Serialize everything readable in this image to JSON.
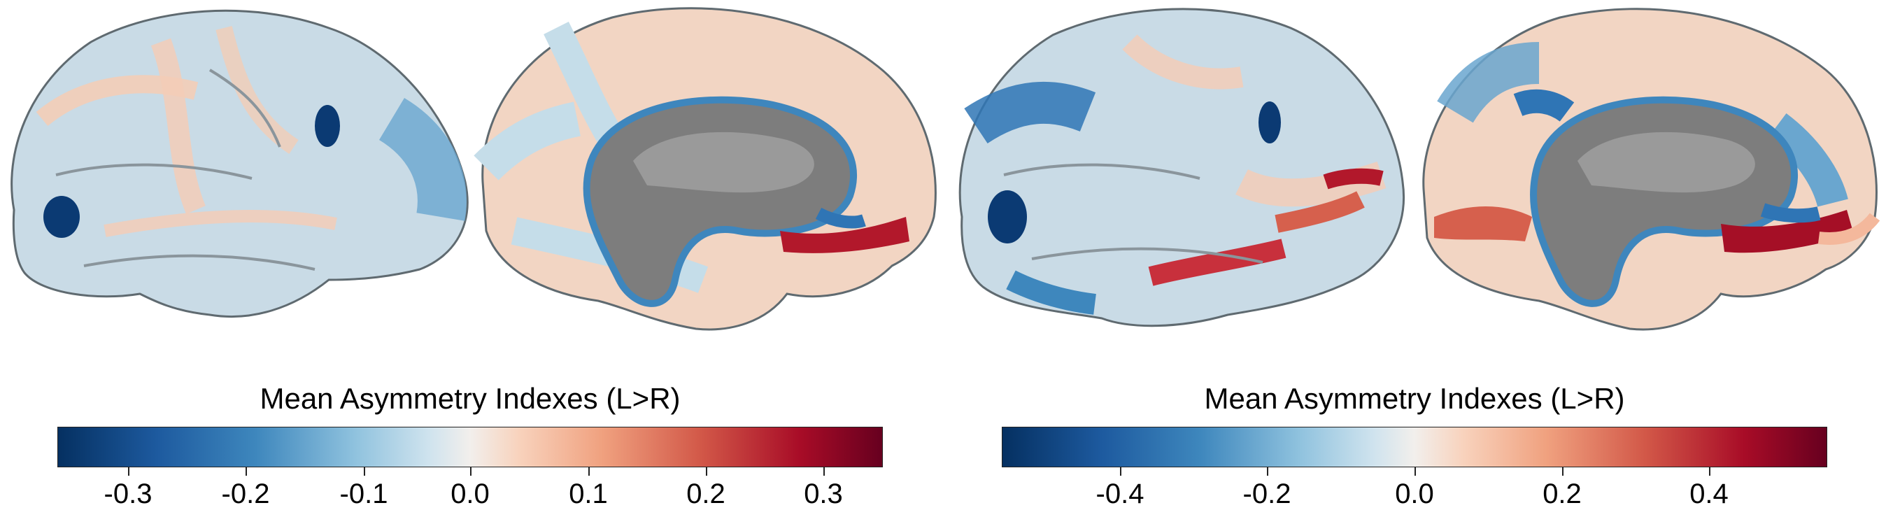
{
  "figure": {
    "views": [
      {
        "hemisphere": "left",
        "view": "lateral"
      },
      {
        "hemisphere": "left",
        "view": "medial"
      },
      {
        "hemisphere": "right",
        "view": "lateral"
      },
      {
        "hemisphere": "right",
        "view": "medial"
      }
    ],
    "colormap": "RdBu_r",
    "colors": {
      "strong_negative": "#053061",
      "negative": "#3e87bd",
      "weak_negative": "#cfe3ee",
      "zero": "#f2efec",
      "weak_positive": "#f8d2bc",
      "positive": "#d25848",
      "strong_positive": "#67001f",
      "medial_wall": "#7a7a7a"
    }
  },
  "colorbars": [
    {
      "title": "Mean Asymmetry Indexes (L>R)",
      "range": [
        -0.35,
        0.35
      ],
      "ticks": [
        "-0.3",
        "-0.2",
        "-0.1",
        "0.0",
        "0.1",
        "0.2",
        "0.3"
      ],
      "tick_values": [
        -0.3,
        -0.2,
        -0.1,
        0.0,
        0.1,
        0.2,
        0.3
      ]
    },
    {
      "title": "Mean Asymmetry Indexes (L>R)",
      "range": [
        -0.56,
        0.56
      ],
      "ticks": [
        "-0.4",
        "-0.2",
        "0.0",
        "0.2",
        "0.4"
      ],
      "tick_values": [
        -0.4,
        -0.2,
        0.0,
        0.2,
        0.4
      ]
    }
  ]
}
